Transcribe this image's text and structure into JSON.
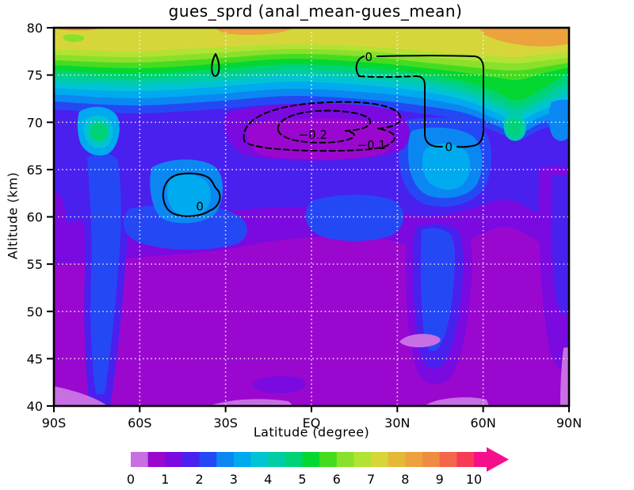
{
  "title": "gues_sprd (anal_mean-gues_mean)",
  "axes": {
    "x": {
      "title": "Latitude (degree)",
      "range": [
        -90,
        90
      ],
      "ticks": [
        {
          "label": "90S",
          "value": -90
        },
        {
          "label": "60S",
          "value": -60
        },
        {
          "label": "30S",
          "value": -30
        },
        {
          "label": "EQ",
          "value": 0
        },
        {
          "label": "30N",
          "value": 30
        },
        {
          "label": "60N",
          "value": 60
        },
        {
          "label": "90N",
          "value": 90
        }
      ],
      "gridlines": [
        -60,
        -30,
        0,
        30,
        60
      ]
    },
    "y": {
      "title": "Altitude (km)",
      "range": [
        40,
        80
      ],
      "ticks": [
        {
          "label": "40",
          "value": 40
        },
        {
          "label": "45",
          "value": 45
        },
        {
          "label": "50",
          "value": 50
        },
        {
          "label": "55",
          "value": 55
        },
        {
          "label": "60",
          "value": 60
        },
        {
          "label": "65",
          "value": 65
        },
        {
          "label": "70",
          "value": 70
        },
        {
          "label": "75",
          "value": 75
        },
        {
          "label": "80",
          "value": 80
        }
      ],
      "gridlines": [
        45,
        50,
        55,
        60,
        65,
        70,
        75
      ]
    }
  },
  "colorbar": {
    "tick_labels": [
      "0",
      "1",
      "2",
      "3",
      "4",
      "5",
      "6",
      "7",
      "8",
      "9",
      "10"
    ],
    "levels": [
      0,
      0.5,
      1,
      1.5,
      2,
      2.5,
      3,
      3.5,
      4,
      4.5,
      5,
      5.5,
      6,
      6.5,
      7,
      7.5,
      8,
      8.5,
      9,
      9.5,
      10
    ],
    "segment_colors": [
      "#c76fe3",
      "#9a08cf",
      "#7a0ae0",
      "#4a20ee",
      "#2548f5",
      "#0b87f2",
      "#00aaee",
      "#00c4d4",
      "#00cda6",
      "#00d377",
      "#04d732",
      "#45dc20",
      "#8ae02b",
      "#b2e233",
      "#d6d63a",
      "#e6b839",
      "#eda23e",
      "#f08c41",
      "#f4664a",
      "#f73b57"
    ],
    "overflow_arrow_color": "#f50f8a"
  },
  "contour_labels": [
    {
      "text": "0",
      "lat": -39,
      "alt": 61.1
    },
    {
      "text": "0",
      "lat": 20,
      "alt": 76.9
    },
    {
      "text": "0",
      "lat": 48,
      "alt": 67.4
    },
    {
      "text": "-0.1",
      "lat": 21,
      "alt": 67.6
    },
    {
      "text": "-0.2",
      "lat": 0.5,
      "alt": 68.7
    }
  ],
  "chart_data": {
    "type": "heatmap",
    "subtype": "filled_contour_with_line_contour_overlay",
    "title": "gues_sprd (anal_mean-gues_mean)",
    "fill_variable": "gues_sprd (guess ensemble spread)",
    "line_variable": "anal_mean - gues_mean (analysis increment)",
    "xlabel": "Latitude (degree)",
    "ylabel": "Altitude (km)",
    "xlim": [
      -90,
      90
    ],
    "ylim": [
      40,
      80
    ],
    "grid": "white dotted every 30 deg / 5 km",
    "legend_position": "horizontal colorbar below, 0 to 10 with overflow arrow",
    "fill_levels": [
      0,
      0.5,
      1,
      1.5,
      2,
      2.5,
      3,
      3.5,
      4,
      4.5,
      5,
      5.5,
      6,
      6.5,
      7,
      7.5,
      8,
      8.5,
      9,
      9.5,
      10
    ],
    "line_contour_levels_shown": [
      -0.2,
      -0.1,
      0
    ],
    "line_contour_style": {
      "negative": "dashed",
      "zero_and_positive": "solid",
      "color": "black"
    },
    "lats": [
      -90,
      -75,
      -60,
      -45,
      -30,
      -15,
      0,
      15,
      30,
      45,
      60,
      75,
      90
    ],
    "alts": [
      80,
      75,
      70,
      65,
      60,
      55,
      50,
      45,
      40
    ],
    "spread_estimates_by_alt_row": [
      [
        7.0,
        7.2,
        7.0,
        7.0,
        7.6,
        7.6,
        7.0,
        7.0,
        7.0,
        7.0,
        7.7,
        7.8,
        7.8
      ],
      [
        5.2,
        4.8,
        4.5,
        4.2,
        4.0,
        3.8,
        3.8,
        3.9,
        4.2,
        4.6,
        5.0,
        5.6,
        4.8
      ],
      [
        3.2,
        4.6,
        3.0,
        2.6,
        1.9,
        1.2,
        0.9,
        0.9,
        2.2,
        2.8,
        3.1,
        4.0,
        2.9
      ],
      [
        2.6,
        2.2,
        2.4,
        3.2,
        2.4,
        2.1,
        2.0,
        2.3,
        2.6,
        3.3,
        3.4,
        2.4,
        1.6
      ],
      [
        1.4,
        2.1,
        1.9,
        2.2,
        1.7,
        1.5,
        1.5,
        1.7,
        1.9,
        2.3,
        1.6,
        1.3,
        1.3
      ],
      [
        1.1,
        1.9,
        1.2,
        1.1,
        1.0,
        0.8,
        0.8,
        0.9,
        1.2,
        1.7,
        1.0,
        0.9,
        1.4
      ],
      [
        0.9,
        1.7,
        1.0,
        0.9,
        0.8,
        0.7,
        0.7,
        0.8,
        0.9,
        1.4,
        0.8,
        0.8,
        1.3
      ],
      [
        0.8,
        1.4,
        0.9,
        0.8,
        0.8,
        0.7,
        0.7,
        0.7,
        0.8,
        0.4,
        0.7,
        0.7,
        1.1
      ],
      [
        0.3,
        0.9,
        0.8,
        0.7,
        0.4,
        0.5,
        0.4,
        0.6,
        0.7,
        0.3,
        0.4,
        0.8,
        0.5
      ]
    ],
    "features": [
      "High spread (7-8, yellow/orange) band along the model top 76-80 km at all latitudes",
      "Spread decreases downward: green 75-77 km, cyan 72-75 km, blue 60-72 km, purple below 55 km",
      "Closed dashed -0.1 and -0.2 increment contours centered near the equator at 67-72 km",
      "Solid 0 increment contour loop between 20N and 60N at 67-77 km, with labels at 20N/77km and 48N/67km",
      "Closed solid 0 contour near 50S-35S at 60-65 km enclosing a cyan spread maximum",
      "Small solid 0 contour spike near 33S at 74-77 km",
      "Local spread minima (<0.5, light orchid) near 38N/47km and along the bottom edge corners"
    ]
  }
}
